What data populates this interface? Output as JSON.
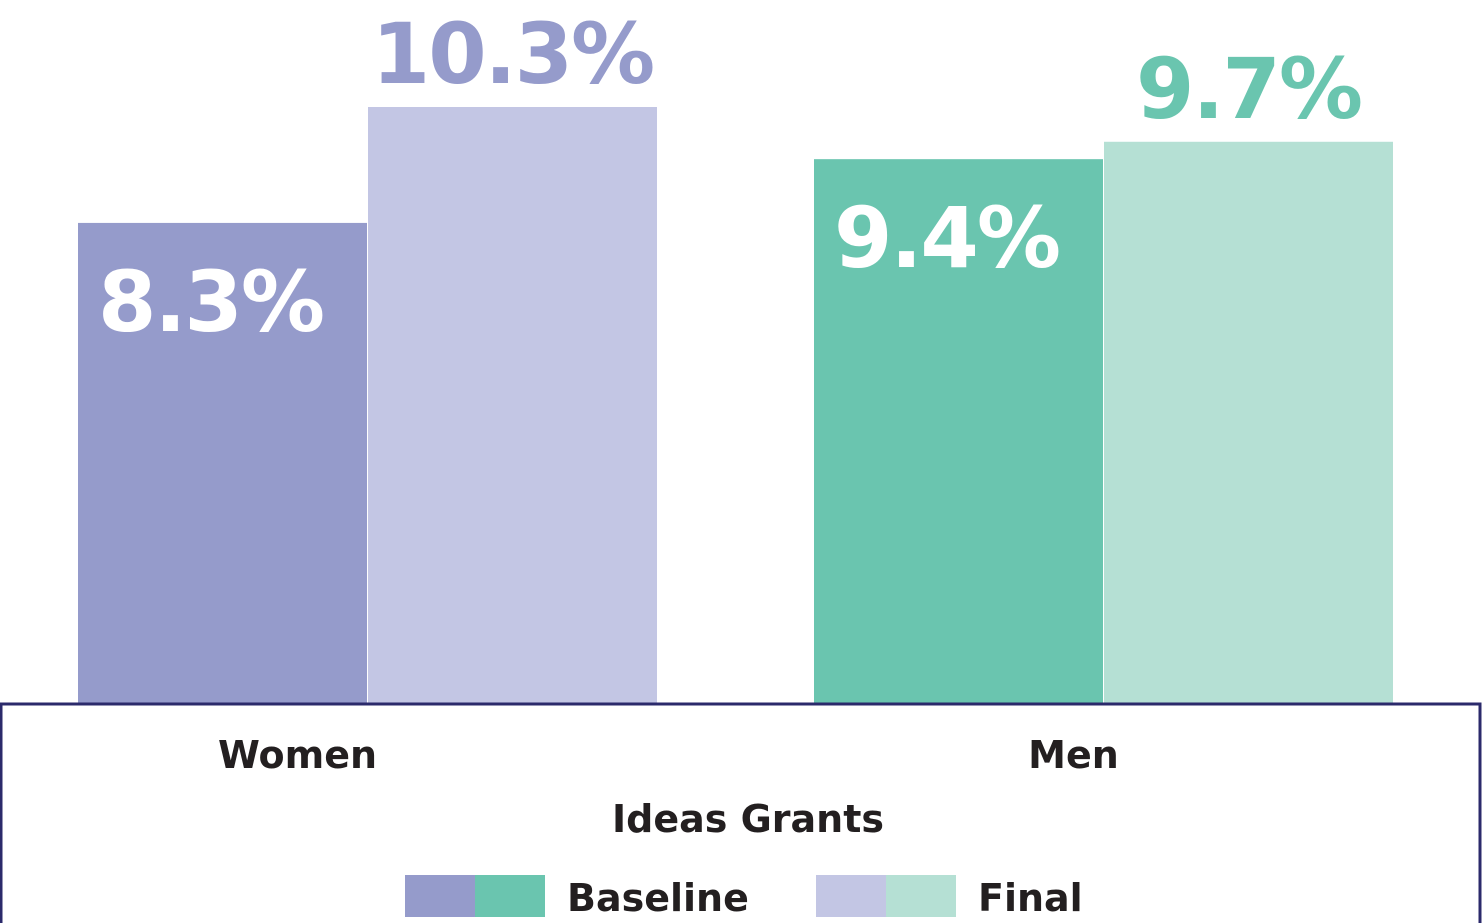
{
  "chart_data": {
    "type": "bar",
    "xlabel": "Ideas Grants",
    "categories": [
      "Women",
      "Men"
    ],
    "series": [
      {
        "name": "Baseline",
        "values": [
          8.3,
          9.4
        ],
        "labels": [
          "8.3%",
          "9.4%"
        ],
        "colors": [
          "#959bcb",
          "#6ac5af"
        ]
      },
      {
        "name": "Final",
        "values": [
          10.3,
          9.7
        ],
        "labels": [
          "10.3%",
          "9.7%"
        ],
        "colors": [
          "#c3c6e4",
          "#b5e0d4"
        ]
      }
    ],
    "ylim": [
      0,
      10.3
    ],
    "legend_placement": "bottom",
    "grid": false,
    "frame_color": "#2b2a6b"
  }
}
